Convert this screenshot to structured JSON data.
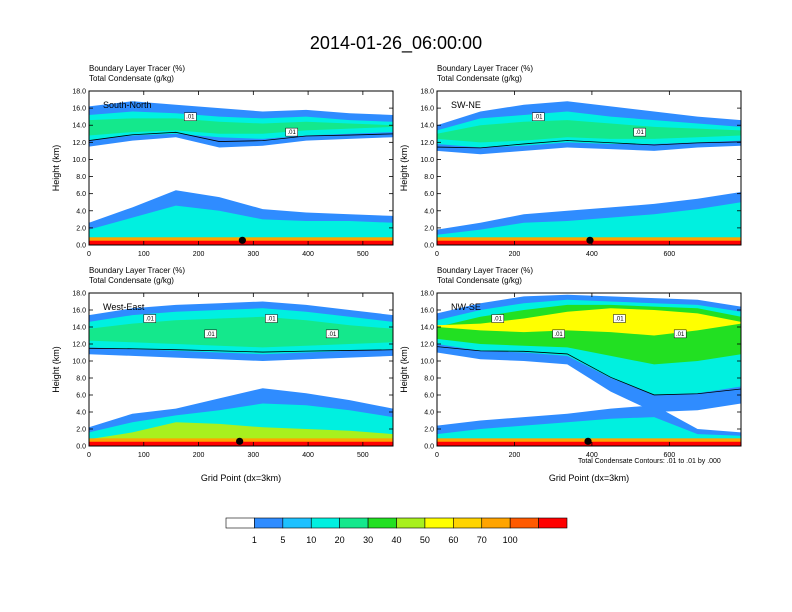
{
  "figure": {
    "title": "2014-01-26_06:00:00",
    "contour_note": "Total Condensate Contours: .01 to .01 by .000",
    "colorbar": {
      "levels": [
        "1",
        "5",
        "10",
        "20",
        "30",
        "40",
        "50",
        "60",
        "70",
        "100"
      ],
      "colors": [
        "#ffffff",
        "#2f8cff",
        "#1ec1ff",
        "#00f0e0",
        "#14e88c",
        "#22e022",
        "#a8f01e",
        "#ffff00",
        "#ffd400",
        "#ffa400",
        "#ff5a00",
        "#ff0000"
      ]
    },
    "common_labels": {
      "line1": "Boundary Layer Tracer    (%)",
      "line2": "Total Condensate    (g/kg)"
    },
    "xlabel": "Grid Point (dx=3km)",
    "ylabel": "Height (km)"
  },
  "chart_data": [
    {
      "type": "heatmap",
      "panel_label": "South-North",
      "xlabel": "",
      "ylabel": "Height (km)",
      "xlim": [
        0,
        555
      ],
      "ylim": [
        0,
        18
      ],
      "x_ticks": [
        "0",
        "100",
        "200",
        "300",
        "400",
        "500"
      ],
      "y_ticks": [
        "0.0",
        "2.0",
        "4.0",
        "6.0",
        "8.0",
        "10.0",
        "12.0",
        "14.0",
        "16.0",
        "18.0"
      ],
      "marker_x": 280,
      "contour_labels": [
        ".01",
        ".01"
      ],
      "layers": [
        {
          "level": "1",
          "y_bottom": [
            11.5,
            12.2,
            12.6,
            11.4,
            11.6,
            12.2,
            12.4,
            12.6
          ],
          "y_top": [
            16.2,
            16.8,
            16.4,
            16.0,
            15.6,
            15.8,
            15.4,
            15.2
          ]
        },
        {
          "level": "10",
          "y_bottom": [
            12.2,
            12.8,
            13.0,
            12.6,
            12.4,
            12.8,
            13.0,
            13.2
          ],
          "y_top": [
            15.2,
            15.6,
            15.4,
            15.0,
            14.8,
            15.0,
            14.6,
            14.4
          ]
        },
        {
          "level": "20",
          "y_bottom": [
            12.8,
            13.2,
            13.4,
            13.0,
            13.0,
            13.4,
            13.6,
            13.8
          ],
          "y_top": [
            14.6,
            14.8,
            14.8,
            14.4,
            14.2,
            14.4,
            14.2,
            14.0
          ]
        }
      ],
      "lower_layers": [
        {
          "level": "1",
          "y_bottom": [
            0.4,
            0.4,
            0.4,
            0.4,
            0.4,
            0.4,
            0.4,
            0.4
          ],
          "y_top": [
            2.6,
            4.4,
            6.4,
            5.6,
            4.2,
            3.8,
            3.6,
            3.4
          ]
        },
        {
          "level": "10",
          "y_bottom": [
            0.4,
            0.4,
            0.4,
            0.4,
            0.4,
            0.4,
            0.4,
            0.4
          ],
          "y_top": [
            1.8,
            3.2,
            4.6,
            4.0,
            3.0,
            2.8,
            2.8,
            2.6
          ]
        }
      ],
      "surface_level": "70"
    },
    {
      "type": "heatmap",
      "panel_label": "SW-NE",
      "xlabel": "",
      "ylabel": "Height (km)",
      "xlim": [
        0,
        785
      ],
      "ylim": [
        0,
        18
      ],
      "x_ticks": [
        "0",
        "200",
        "400",
        "600"
      ],
      "y_ticks": [
        "0.0",
        "2.0",
        "4.0",
        "6.0",
        "8.0",
        "10.0",
        "12.0",
        "14.0",
        "16.0",
        "18.0"
      ],
      "marker_x": 395,
      "contour_labels": [
        ".01",
        ".01"
      ],
      "layers": [
        {
          "level": "1",
          "y_bottom": [
            11.0,
            10.6,
            11.0,
            11.4,
            11.2,
            11.0,
            11.4,
            11.6
          ],
          "y_top": [
            14.0,
            15.6,
            16.4,
            16.8,
            16.2,
            15.6,
            15.0,
            14.6
          ]
        },
        {
          "level": "10",
          "y_bottom": [
            11.8,
            11.4,
            11.6,
            12.0,
            11.8,
            11.8,
            12.0,
            12.2
          ],
          "y_top": [
            13.4,
            14.8,
            15.2,
            15.6,
            15.0,
            14.6,
            14.2,
            13.8
          ]
        },
        {
          "level": "20",
          "y_bottom": [
            12.4,
            12.0,
            12.2,
            12.6,
            12.4,
            12.4,
            12.6,
            12.8
          ],
          "y_top": [
            13.0,
            14.0,
            14.4,
            14.6,
            14.2,
            13.8,
            13.6,
            13.4
          ]
        }
      ],
      "lower_layers": [
        {
          "level": "1",
          "y_bottom": [
            0.4,
            0.4,
            0.4,
            0.4,
            0.4,
            0.4,
            0.4,
            0.4
          ],
          "y_top": [
            1.8,
            2.6,
            3.6,
            4.0,
            4.4,
            4.8,
            5.4,
            6.2
          ]
        },
        {
          "level": "10",
          "y_bottom": [
            0.4,
            0.4,
            0.4,
            0.4,
            0.4,
            0.4,
            0.4,
            0.4
          ],
          "y_top": [
            1.2,
            1.8,
            2.6,
            2.8,
            3.2,
            3.6,
            4.2,
            5.0
          ]
        }
      ],
      "surface_level": "70"
    },
    {
      "type": "heatmap",
      "panel_label": "West-East",
      "xlabel": "Grid Point (dx=3km)",
      "ylabel": "Height (km)",
      "xlim": [
        0,
        555
      ],
      "ylim": [
        0,
        18
      ],
      "x_ticks": [
        "0",
        "100",
        "200",
        "300",
        "400",
        "500"
      ],
      "y_ticks": [
        "0.0",
        "2.0",
        "4.0",
        "6.0",
        "8.0",
        "10.0",
        "12.0",
        "14.0",
        "16.0",
        "18.0"
      ],
      "marker_x": 275,
      "contour_labels": [
        ".01",
        ".01",
        ".01",
        ".01"
      ],
      "layers": [
        {
          "level": "1",
          "y_bottom": [
            10.8,
            10.6,
            10.4,
            10.2,
            10.0,
            10.2,
            10.4,
            10.6
          ],
          "y_top": [
            15.4,
            16.2,
            16.6,
            16.8,
            17.0,
            16.6,
            16.0,
            15.4
          ]
        },
        {
          "level": "10",
          "y_bottom": [
            11.6,
            11.4,
            11.2,
            11.0,
            10.8,
            11.0,
            11.2,
            11.4
          ],
          "y_top": [
            14.6,
            15.4,
            15.8,
            16.0,
            16.2,
            15.8,
            15.2,
            14.6
          ]
        },
        {
          "level": "20",
          "y_bottom": [
            12.4,
            12.2,
            12.0,
            11.8,
            11.6,
            11.8,
            12.0,
            12.2
          ],
          "y_top": [
            13.8,
            14.4,
            14.8,
            15.0,
            15.2,
            14.8,
            14.2,
            13.8
          ]
        }
      ],
      "lower_layers": [
        {
          "level": "1",
          "y_bottom": [
            0.4,
            0.4,
            0.4,
            0.4,
            0.4,
            0.4,
            0.4,
            0.4
          ],
          "y_top": [
            2.2,
            3.8,
            4.4,
            5.6,
            6.8,
            6.2,
            5.4,
            4.4
          ]
        },
        {
          "level": "10",
          "y_bottom": [
            0.4,
            0.4,
            0.4,
            0.4,
            0.4,
            0.4,
            0.4,
            0.4
          ],
          "y_top": [
            1.6,
            2.8,
            3.6,
            4.2,
            5.0,
            4.8,
            4.2,
            3.4
          ]
        },
        {
          "level": "40",
          "y_bottom": [
            0.4,
            0.4,
            0.4,
            0.4,
            0.4,
            0.4,
            0.4,
            0.4
          ],
          "y_top": [
            0.8,
            1.6,
            2.8,
            2.6,
            2.2,
            2.0,
            1.8,
            1.4
          ]
        }
      ],
      "surface_level": "70"
    },
    {
      "type": "heatmap",
      "panel_label": "NW-SE",
      "xlabel": "Grid Point (dx=3km)",
      "ylabel": "Height (km)",
      "xlim": [
        0,
        785
      ],
      "ylim": [
        0,
        18
      ],
      "x_ticks": [
        "0",
        "200",
        "400",
        "600"
      ],
      "y_ticks": [
        "0.0",
        "2.0",
        "4.0",
        "6.0",
        "8.0",
        "10.0",
        "12.0",
        "14.0",
        "16.0",
        "18.0"
      ],
      "marker_x": 390,
      "contour_labels": [
        ".01",
        ".01",
        ".01",
        ".01"
      ],
      "layers": [
        {
          "level": "1",
          "y_bottom": [
            11.0,
            10.2,
            10.0,
            9.6,
            6.4,
            4.0,
            4.2,
            5.0
          ],
          "y_top": [
            15.6,
            16.8,
            17.6,
            17.8,
            17.6,
            17.4,
            17.2,
            16.4
          ]
        },
        {
          "level": "10",
          "y_bottom": [
            12.0,
            11.2,
            11.0,
            10.6,
            8.0,
            6.0,
            6.2,
            7.0
          ],
          "y_top": [
            14.8,
            16.0,
            16.8,
            17.2,
            17.0,
            16.8,
            16.6,
            15.8
          ]
        },
        {
          "level": "30",
          "y_bottom": [
            12.6,
            12.0,
            11.8,
            11.6,
            10.6,
            9.6,
            10.0,
            10.8
          ],
          "y_top": [
            14.0,
            15.2,
            16.0,
            16.6,
            16.6,
            16.4,
            16.2,
            15.2
          ]
        },
        {
          "level": "50",
          "y_bottom": [
            14.0,
            13.6,
            13.4,
            13.6,
            13.4,
            13.0,
            13.6,
            14.4
          ],
          "y_top": [
            14.2,
            14.4,
            15.0,
            15.8,
            16.2,
            16.0,
            15.6,
            14.6
          ]
        }
      ],
      "lower_layers": [
        {
          "level": "1",
          "y_bottom": [
            0.4,
            0.4,
            0.4,
            0.4,
            0.4,
            0.4,
            0.4,
            0.4
          ],
          "y_top": [
            2.4,
            3.0,
            3.4,
            3.8,
            4.4,
            4.8,
            2.0,
            1.6
          ]
        },
        {
          "level": "10",
          "y_bottom": [
            0.4,
            0.4,
            0.4,
            0.4,
            0.4,
            0.4,
            0.4,
            0.4
          ],
          "y_top": [
            1.4,
            2.0,
            2.4,
            2.8,
            3.2,
            3.4,
            1.4,
            1.2
          ]
        }
      ],
      "surface_level": "70"
    }
  ]
}
